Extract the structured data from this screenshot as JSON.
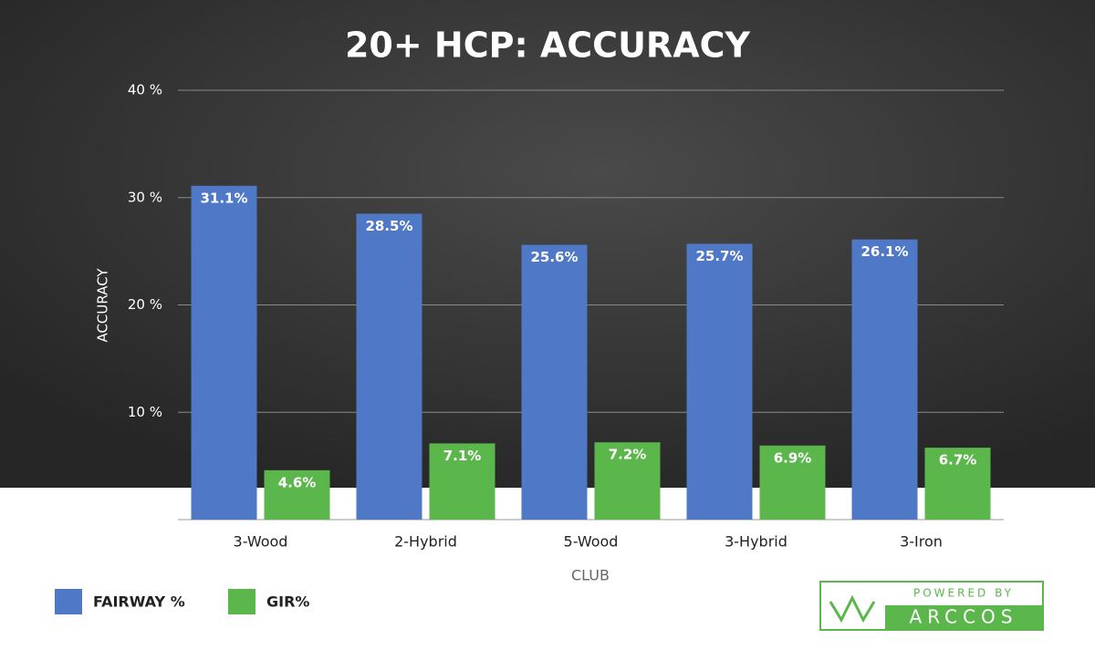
{
  "chart_data": {
    "type": "bar",
    "title": "20+ HCP: ACCURACY",
    "x_label": "CLUB",
    "y_label": "ACCURACY",
    "categories": [
      "3-Wood",
      "2-Hybrid",
      "5-Wood",
      "3-Hybrid",
      "3-Iron"
    ],
    "series": [
      {
        "name": "FAIRWAY %",
        "color": "#4f78c6",
        "values": [
          31.1,
          28.5,
          25.6,
          25.7,
          26.1
        ],
        "value_labels": [
          "31.1%",
          "28.5%",
          "25.6%",
          "25.7%",
          "26.1%"
        ]
      },
      {
        "name": "GIR%",
        "color": "#5bb64c",
        "values": [
          4.6,
          7.1,
          7.2,
          6.9,
          6.7
        ],
        "value_labels": [
          "4.6%",
          "7.1%",
          "7.2%",
          "6.9%",
          "6.7%"
        ]
      }
    ],
    "ylim": [
      0,
      40
    ],
    "yticks": [
      {
        "value": 10,
        "label": "10 %"
      },
      {
        "value": 20,
        "label": "20 %"
      },
      {
        "value": 30,
        "label": "30 %"
      },
      {
        "value": 40,
        "label": "40 %"
      }
    ],
    "grid": true,
    "legend": "bottom-left"
  },
  "logo": {
    "top": "POWERED BY",
    "bottom": "ARCCOS"
  }
}
